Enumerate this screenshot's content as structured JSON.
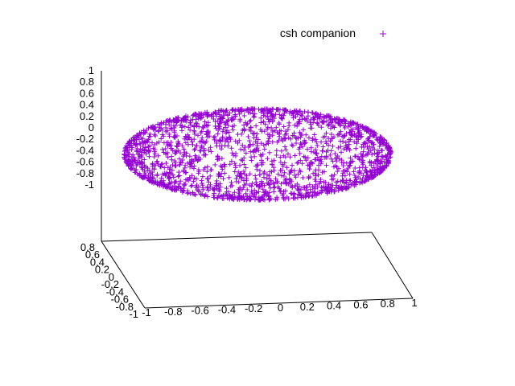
{
  "chart_data": {
    "type": "scatter",
    "projection": "3d",
    "title": "",
    "series": [
      {
        "name": "csh companion",
        "marker": "+",
        "color": "#9400d3",
        "description_of_shape": "points on the surface of a unit sphere",
        "point_count": 2000
      }
    ],
    "xlim": [
      -1,
      1
    ],
    "ylim": [
      -1,
      1
    ],
    "zlim": [
      -1,
      1
    ],
    "xticks": [
      "-1",
      "-0.8",
      "-0.6",
      "-0.4",
      "-0.2",
      "0",
      "0.2",
      "0.4",
      "0.6",
      "0.8",
      "1"
    ],
    "yticks": [
      "-1",
      "-0.8",
      "-0.6",
      "-0.4",
      "-0.2",
      "0",
      "0.2",
      "0.4",
      "0.6",
      "0.8"
    ],
    "zticks": [
      "1",
      "0.8",
      "0.6",
      "0.4",
      "0.2",
      "0",
      "-0.2",
      "-0.4",
      "-0.6",
      "-0.8",
      "-1"
    ],
    "legend_position": "top-right",
    "grid": false
  }
}
